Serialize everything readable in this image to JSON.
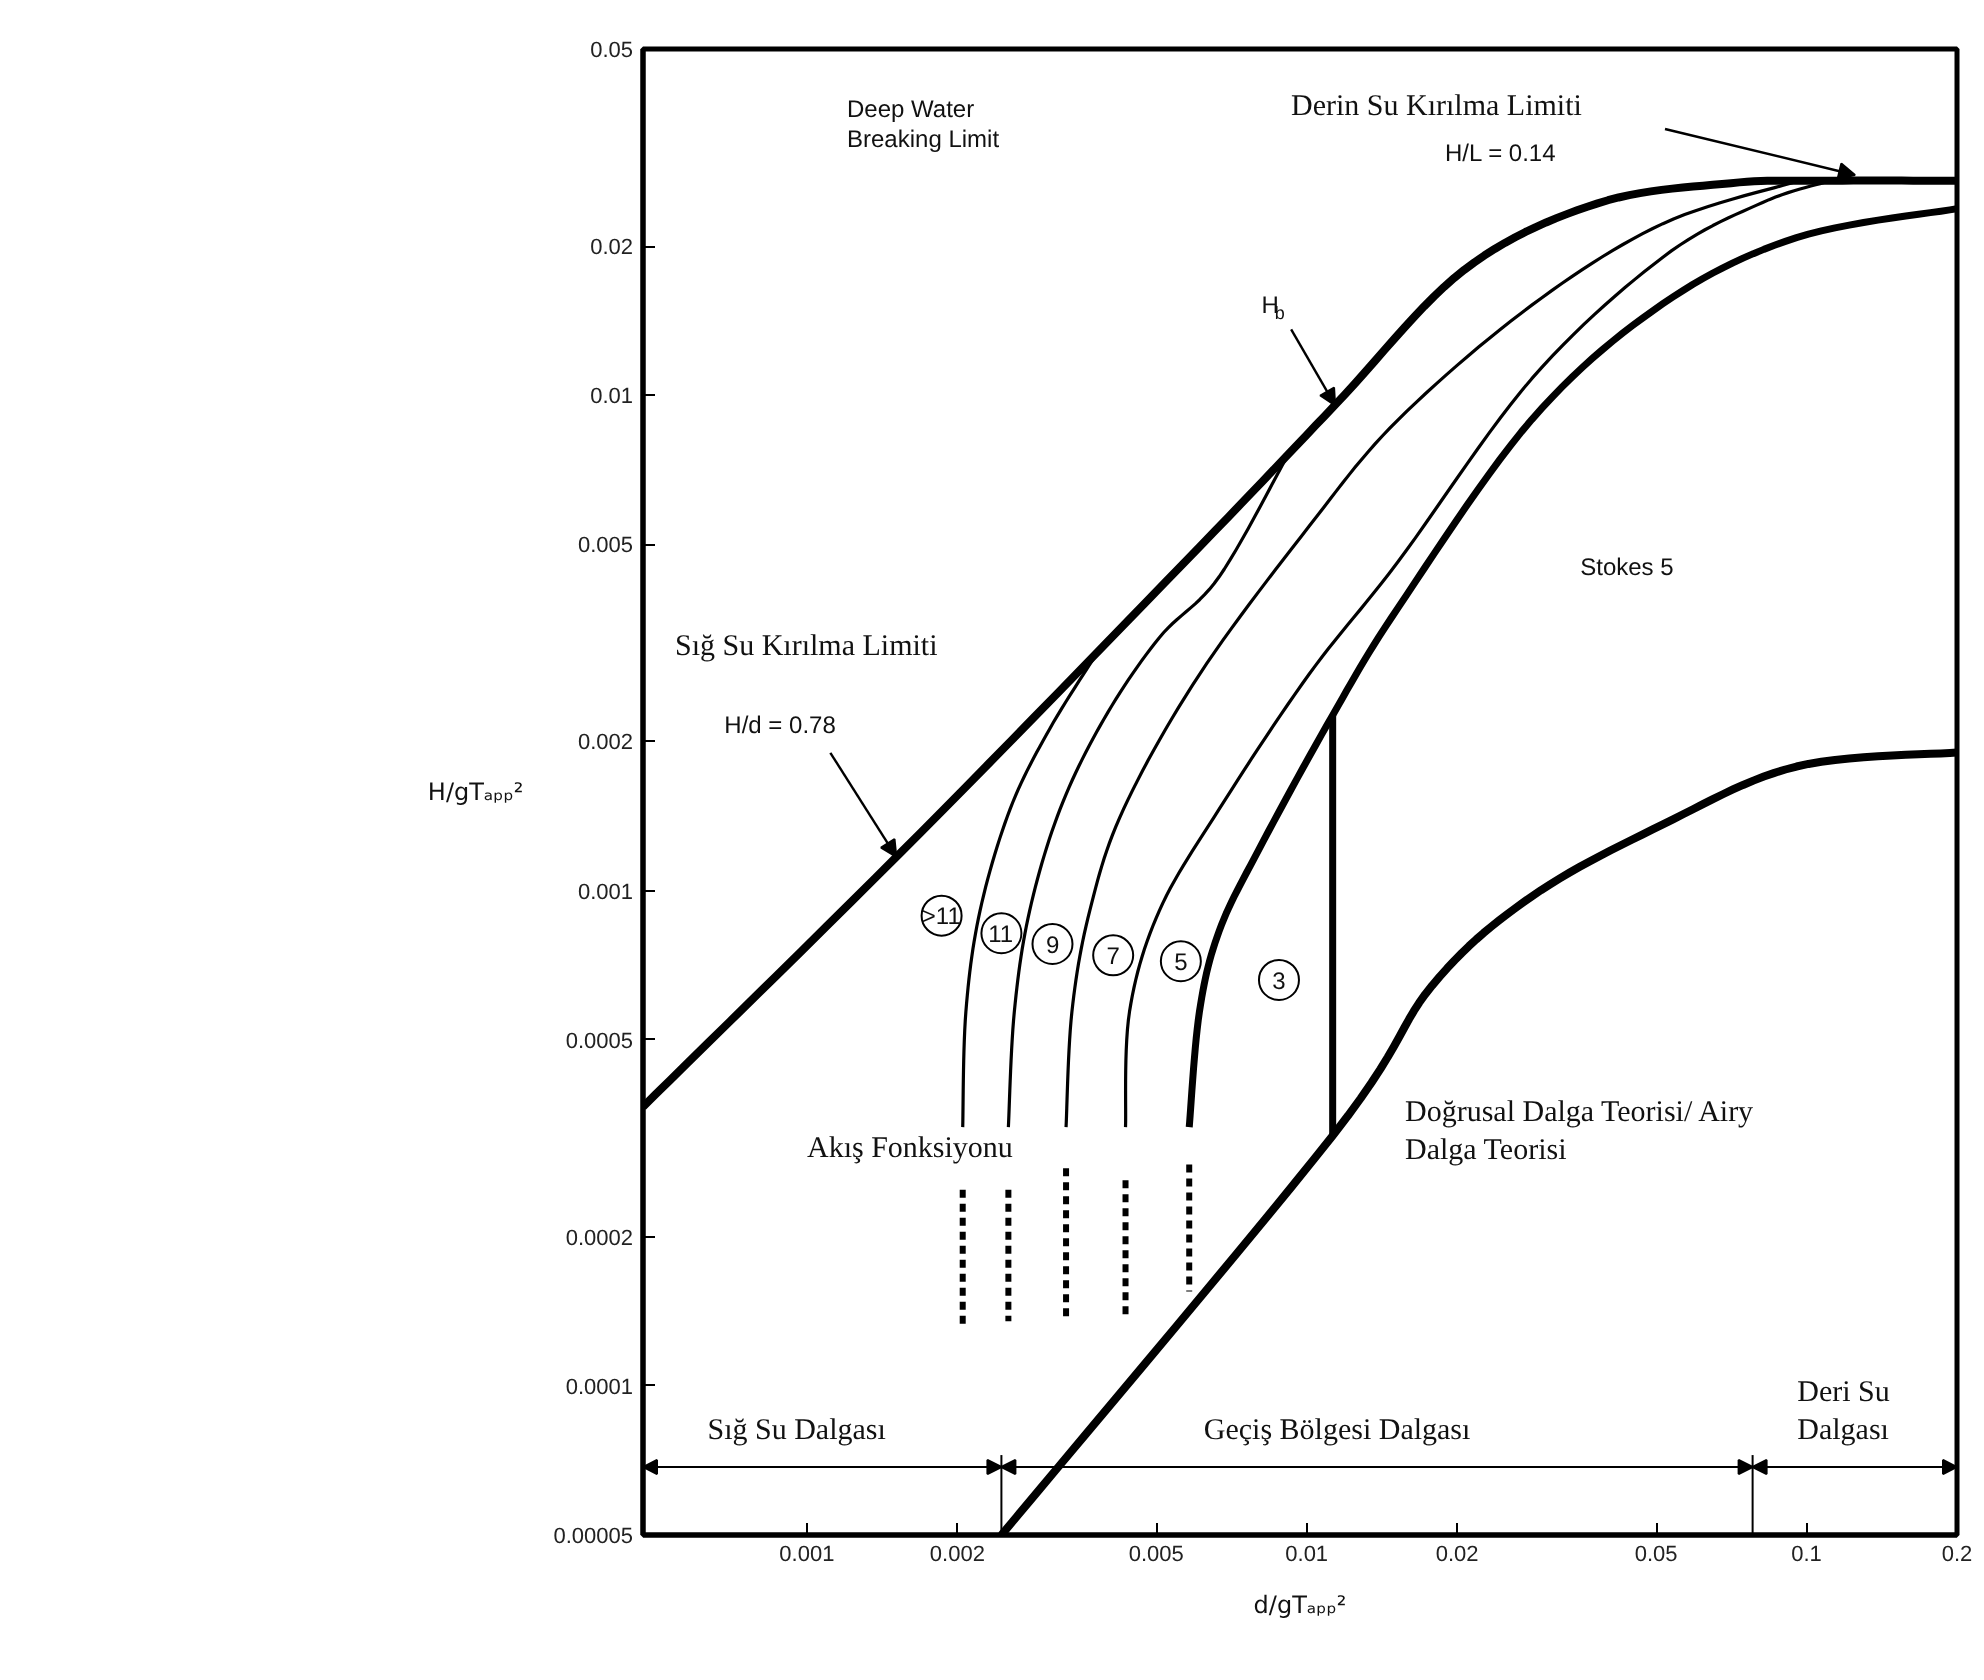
{
  "chart_data": {
    "type": "line",
    "xlabel": "d/gTₐₚₚ²",
    "ylabel": "H/gTₐₚₚ²",
    "log": "xy",
    "grid": false,
    "xlim": [
      0.00047,
      0.2
    ],
    "ylim": [
      5e-05,
      0.05
    ],
    "xticks": [
      0.001,
      0.002,
      0.005,
      0.01,
      0.02,
      0.05,
      0.1,
      0.2
    ],
    "yticks": [
      {
        "value": 5e-05,
        "label": "0.00005"
      },
      0.0001,
      0.0002,
      0.0005,
      0.001,
      0.002,
      0.005,
      0.01,
      0.02,
      0.05
    ],
    "series": [
      {
        "color": "#000000",
        "x": [
          0.00047,
          0.00169,
          0.0061,
          0.01138,
          0.02065,
          0.0382,
          0.0706,
          0.1077,
          0.2
        ],
        "values": [
          0.000366,
          0.00131,
          0.00494,
          0.00954,
          0.0179,
          0.0244,
          0.0268,
          0.0271,
          0.0271
        ]
      },
      {
        "color": "#000000",
        "x": [
          0.00205,
          0.00208,
          0.00222,
          0.00255,
          0.00306,
          0.00385
        ],
        "values": [
          0.000333,
          0.000569,
          0.00091,
          0.00146,
          0.00212,
          0.00307
        ]
      },
      {
        "color": "#000000",
        "x": [
          0.00253,
          0.0026,
          0.00279,
          0.00321,
          0.00393,
          0.00507,
          0.00668,
          0.00921
        ],
        "values": [
          0.000333,
          0.000569,
          0.00091,
          0.00146,
          0.00222,
          0.00324,
          0.0043,
          0.00764
        ]
      },
      {
        "color": "#000000",
        "x": [
          0.0033,
          0.00339,
          0.00368,
          0.0043,
          0.0061,
          0.0101,
          0.01525,
          0.0282,
          0.0516,
          0.0955
        ],
        "values": [
          0.000333,
          0.000569,
          0.00091,
          0.00146,
          0.00273,
          0.00543,
          0.00893,
          0.0152,
          0.0222,
          0.027
        ]
      },
      {
        "color": "#000000",
        "x": [
          0.00434,
          0.00442,
          0.00507,
          0.00668,
          0.0101,
          0.0152,
          0.0282,
          0.0516,
          0.0817,
          0.1117
        ],
        "values": [
          0.000333,
          0.000569,
          0.00091,
          0.00146,
          0.00273,
          0.0046,
          0.0108,
          0.019,
          0.0245,
          0.0271
        ]
      },
      {
        "color": "#000000",
        "x": [
          0.00582,
          0.0061,
          0.00668,
          0.00802,
          0.01127,
          0.01525,
          0.0282,
          0.0516,
          0.0955,
          0.2
        ],
        "values": [
          0.000333,
          0.000569,
          0.000828,
          0.00121,
          0.00226,
          0.00373,
          0.00893,
          0.0153,
          0.0208,
          0.0238
        ]
      },
      {
        "color": "#000000",
        "x": [
          0.01127,
          0.01127
        ],
        "values": [
          0.00032,
          0.00226
        ]
      },
      {
        "color": "#000000",
        "x": [
          0.00245,
          0.01127,
          0.01782,
          0.0282,
          0.0516,
          0.0955,
          0.2
        ],
        "values": [
          5e-05,
          0.00032,
          0.000643,
          0.000973,
          0.00136,
          0.00178,
          0.0019
        ]
      },
      {
        "color": "#000000",
        "line_style": "dashed",
        "x": [
          0.00205,
          0.00205
        ],
        "values": [
          0.000249,
          0.00013
        ]
      },
      {
        "color": "#000000",
        "line_style": "dashed",
        "x": [
          0.00253,
          0.00253
        ],
        "values": [
          0.000249,
          0.000135
        ]
      },
      {
        "color": "#000000",
        "line_style": "dashed",
        "x": [
          0.0033,
          0.0033
        ],
        "values": [
          0.000275,
          0.000137
        ]
      },
      {
        "color": "#000000",
        "line_style": "dashed",
        "x": [
          0.00434,
          0.00434
        ],
        "values": [
          0.00026,
          0.000137
        ]
      },
      {
        "color": "#000000",
        "line_style": "dashed",
        "x": [
          0.00582,
          0.00582
        ],
        "values": [
          0.00028,
          0.000155
        ]
      },
      {
        "color": "#000000",
        "x": [
          0.00245,
          0.00245
        ],
        "values": [
          5e-05,
          7.25e-05
        ]
      },
      {
        "color": "#000000",
        "x": [
          0.078,
          0.078
        ],
        "values": [
          5e-05,
          7.25e-05
        ]
      }
    ],
    "annotations": [
      "Deep Water\nBreaking Limit",
      "Derin Su Kırılma Limiti",
      "H/L = 0.14",
      {
        "text": "H$_{b}$",
        "x": 0.0114,
        "y": 0.00954
      },
      {
        "text": "H/d = 0.78",
        "x": 0.00151,
        "y": 0.00117
      },
      "Sığ Su Kırılma Limiti",
      "Stokes 5",
      "Akış Fonksiyonu",
      "Doğrusal Dalga Teorisi/ Airy\nDalga Teorisi",
      {
        "text": ">11",
        "x": 0.00186,
        "y": 0.00089
      },
      {
        "text": "11",
        "x": 0.00245,
        "y": 0.00082
      },
      {
        "text": "9",
        "x": 0.0031,
        "y": 0.00078
      },
      {
        "text": "7",
        "x": 0.0041,
        "y": 0.00074
      },
      {
        "text": "5",
        "x": 0.0056,
        "y": 0.00072
      },
      {
        "text": "3",
        "x": 0.0088,
        "y": 0.00066
      },
      "Sığ Su Dalgası",
      "Geçiş Bölgesi Dalgası",
      "Deri Su\nDalgası"
    ]
  }
}
